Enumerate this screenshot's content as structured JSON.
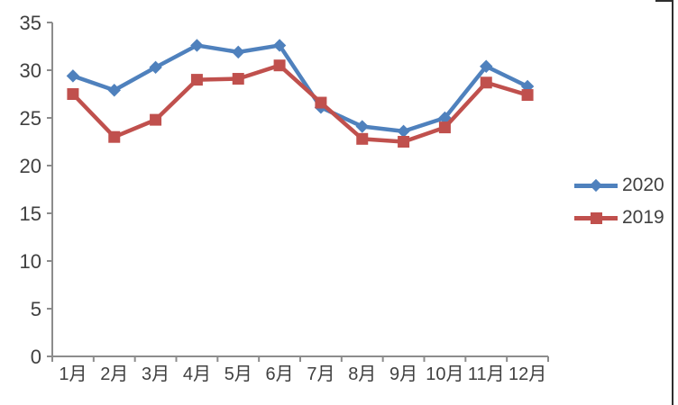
{
  "chart_data": {
    "type": "line",
    "title": "",
    "xlabel": "",
    "ylabel": "",
    "categories": [
      "1月",
      "2月",
      "3月",
      "4月",
      "5月",
      "6月",
      "7月",
      "8月",
      "9月",
      "10月",
      "11月",
      "12月"
    ],
    "series": [
      {
        "name": "2020",
        "marker": "diamond",
        "color": "#4f81bd",
        "values": [
          29.4,
          27.9,
          30.3,
          32.6,
          31.9,
          32.6,
          26.1,
          24.1,
          23.6,
          25.0,
          30.4,
          28.3
        ]
      },
      {
        "name": "2019",
        "marker": "square",
        "color": "#c0504d",
        "values": [
          27.5,
          23.0,
          24.8,
          29.0,
          29.1,
          30.5,
          26.6,
          22.8,
          22.5,
          24.0,
          28.7,
          27.4
        ]
      }
    ],
    "ylim": [
      0,
      35
    ],
    "yticks": [
      0,
      5,
      10,
      15,
      20,
      25,
      30,
      35
    ],
    "grid": false,
    "legend_position": "right",
    "axis_color": "#8c8c8c",
    "text_color": "#404040",
    "background_color": "#ffffff",
    "frame_color": "#2e2e2e"
  }
}
